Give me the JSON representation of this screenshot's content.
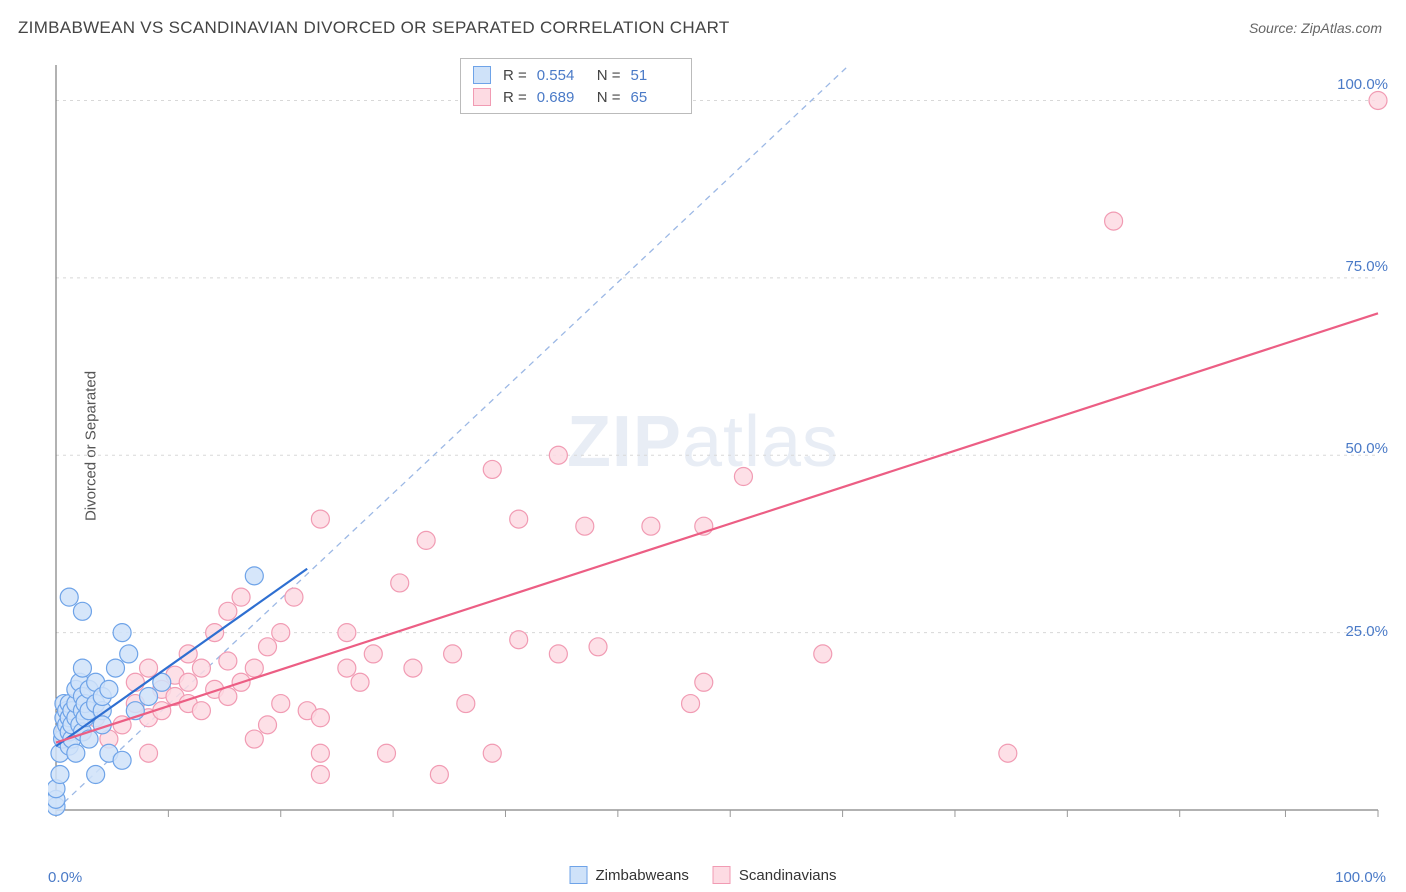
{
  "title": "ZIMBABWEAN VS SCANDINAVIAN DIVORCED OR SEPARATED CORRELATION CHART",
  "source": "Source: ZipAtlas.com",
  "ylabel": "Divorced or Separated",
  "watermark": {
    "left": "ZIP",
    "right": "atlas"
  },
  "chart": {
    "type": "scatter",
    "background_color": "#ffffff",
    "grid_color": "#d8d8d8",
    "axis_color": "#666666",
    "tick_color": "#999999",
    "tick_label_color": "#4a7ac7",
    "xlim": [
      0,
      100
    ],
    "ylim": [
      0,
      105
    ],
    "ytick_values": [
      25,
      50,
      75,
      100
    ],
    "ytick_labels": [
      "25.0%",
      "50.0%",
      "75.0%",
      "100.0%"
    ],
    "xtick_left": "0.0%",
    "xtick_right": "100.0%",
    "xtick_positions": [
      0,
      8.5,
      17,
      25.5,
      34,
      42.5,
      51,
      59.5,
      68,
      76.5,
      85,
      93,
      100
    ],
    "marker_radius": 9,
    "marker_stroke_width": 1.2,
    "line_width": 2.2,
    "series": [
      {
        "name": "Zimbabweans",
        "color_fill": "#cfe2f9",
        "color_stroke": "#6ea3e8",
        "line_color": "#2e6fd1",
        "R": "0.554",
        "N": "51",
        "trend": {
          "x1": 0,
          "y1": 9,
          "x2": 19,
          "y2": 34
        },
        "points": [
          [
            0,
            0.5
          ],
          [
            0,
            1.5
          ],
          [
            0,
            3
          ],
          [
            0.3,
            5
          ],
          [
            0.3,
            8
          ],
          [
            0.5,
            10
          ],
          [
            0.5,
            11
          ],
          [
            0.6,
            13
          ],
          [
            0.6,
            15
          ],
          [
            0.8,
            12
          ],
          [
            0.8,
            14
          ],
          [
            1,
            9
          ],
          [
            1,
            11
          ],
          [
            1,
            13
          ],
          [
            1,
            15
          ],
          [
            1.2,
            10
          ],
          [
            1.2,
            12
          ],
          [
            1.2,
            14
          ],
          [
            1.5,
            13
          ],
          [
            1.5,
            15
          ],
          [
            1.5,
            17
          ],
          [
            1.8,
            12
          ],
          [
            1.8,
            18
          ],
          [
            2,
            11
          ],
          [
            2,
            14
          ],
          [
            2,
            16
          ],
          [
            2,
            20
          ],
          [
            2.2,
            13
          ],
          [
            2.2,
            15
          ],
          [
            2.5,
            14
          ],
          [
            2.5,
            17
          ],
          [
            3,
            15
          ],
          [
            3,
            18
          ],
          [
            3.5,
            14
          ],
          [
            3.5,
            16
          ],
          [
            4,
            17
          ],
          [
            4,
            8
          ],
          [
            4.5,
            20
          ],
          [
            5,
            7
          ],
          [
            5,
            25
          ],
          [
            5.5,
            22
          ],
          [
            6,
            14
          ],
          [
            7,
            16
          ],
          [
            8,
            18
          ],
          [
            2,
            28
          ],
          [
            3,
            5
          ],
          [
            1,
            30
          ],
          [
            1.5,
            8
          ],
          [
            15,
            33
          ],
          [
            2.5,
            10
          ],
          [
            3.5,
            12
          ]
        ]
      },
      {
        "name": "Scandinavians",
        "color_fill": "#fddbe3",
        "color_stroke": "#f19bb3",
        "line_color": "#ec5e84",
        "R": "0.689",
        "N": "65",
        "trend": {
          "x1": 0,
          "y1": 9.5,
          "x2": 100,
          "y2": 70
        },
        "points": [
          [
            2,
            11
          ],
          [
            3,
            13
          ],
          [
            4,
            10
          ],
          [
            5,
            12
          ],
          [
            6,
            15
          ],
          [
            6,
            18
          ],
          [
            7,
            13
          ],
          [
            7,
            20
          ],
          [
            8,
            14
          ],
          [
            8,
            17
          ],
          [
            9,
            16
          ],
          [
            9,
            19
          ],
          [
            10,
            15
          ],
          [
            10,
            18
          ],
          [
            10,
            22
          ],
          [
            11,
            14
          ],
          [
            11,
            20
          ],
          [
            12,
            17
          ],
          [
            12,
            25
          ],
          [
            13,
            16
          ],
          [
            13,
            21
          ],
          [
            14,
            18
          ],
          [
            14,
            30
          ],
          [
            15,
            10
          ],
          [
            15,
            20
          ],
          [
            16,
            12
          ],
          [
            16,
            23
          ],
          [
            17,
            15
          ],
          [
            17,
            25
          ],
          [
            18,
            30
          ],
          [
            19,
            14
          ],
          [
            20,
            5
          ],
          [
            20,
            8
          ],
          [
            20,
            41
          ],
          [
            22,
            20
          ],
          [
            22,
            25
          ],
          [
            23,
            18
          ],
          [
            24,
            22
          ],
          [
            25,
            8
          ],
          [
            26,
            32
          ],
          [
            27,
            20
          ],
          [
            28,
            38
          ],
          [
            29,
            5
          ],
          [
            30,
            22
          ],
          [
            31,
            15
          ],
          [
            33,
            48
          ],
          [
            35,
            24
          ],
          [
            35,
            41
          ],
          [
            38,
            50
          ],
          [
            38,
            22
          ],
          [
            40,
            40
          ],
          [
            41,
            23
          ],
          [
            45,
            40
          ],
          [
            49,
            18
          ],
          [
            49,
            40
          ],
          [
            52,
            47
          ],
          [
            58,
            22
          ],
          [
            80,
            83
          ],
          [
            72,
            8
          ],
          [
            33,
            8
          ],
          [
            48,
            15
          ],
          [
            20,
            13
          ],
          [
            13,
            28
          ],
          [
            7,
            8
          ],
          [
            100,
            100
          ]
        ]
      }
    ],
    "reference_line": {
      "color": "#9cb8e5",
      "dash": "6,5",
      "x1": 0,
      "y1": 0,
      "x2": 60,
      "y2": 105
    }
  },
  "legend_top": {
    "rlabel": "R =",
    "nlabel": "N =",
    "value_color": "#4a7ac7"
  },
  "legend_bottom": {
    "items": [
      "Zimbabweans",
      "Scandinavians"
    ]
  }
}
